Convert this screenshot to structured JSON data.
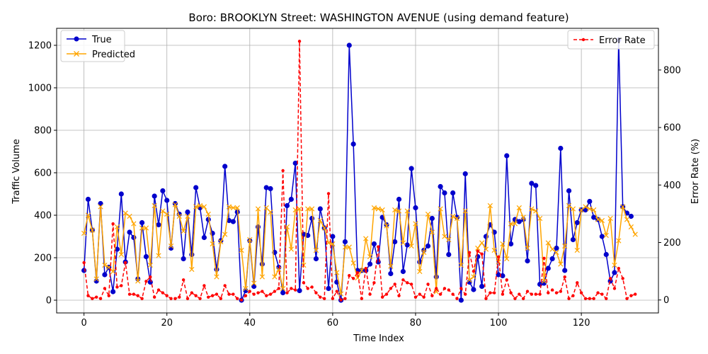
{
  "chart_data": {
    "type": "line",
    "title": "Boro: BROOKLYN Street: WASHINGTON AVENUE (using demand feature)",
    "xlabel": "Time Index",
    "ylabel": "Traffic Volume",
    "y2label": "Error Rate (%)",
    "xlim": [
      -6.6,
      138.6
    ],
    "ylim": [
      -60,
      1280
    ],
    "y2lim": [
      -45,
      945
    ],
    "xticks": [
      0,
      20,
      40,
      60,
      80,
      100,
      120
    ],
    "yticks": [
      0,
      200,
      400,
      600,
      800,
      1000,
      1200
    ],
    "y2ticks": [
      0,
      200,
      400,
      600,
      800
    ],
    "grid": true,
    "legend_left_placement": "upper-left",
    "legend_right_placement": "upper-right",
    "colors": {
      "true": "#0000cc",
      "predicted": "#ffa500",
      "error": "#ff0000",
      "grid": "#b0b0b0"
    },
    "series": [
      {
        "name": "True",
        "axis": "left",
        "marker": "circle",
        "values": [
          140,
          475,
          330,
          90,
          455,
          120,
          155,
          40,
          240,
          500,
          180,
          320,
          295,
          100,
          365,
          205,
          85,
          490,
          355,
          515,
          470,
          245,
          455,
          405,
          195,
          415,
          215,
          530,
          435,
          295,
          380,
          315,
          145,
          280,
          630,
          375,
          370,
          415,
          0,
          45,
          280,
          65,
          345,
          170,
          530,
          525,
          225,
          155,
          35,
          445,
          475,
          645,
          45,
          310,
          305,
          385,
          195,
          430,
          340,
          55,
          300,
          85,
          0,
          275,
          1200,
          735,
          140,
          140,
          140,
          170,
          265,
          180,
          390,
          355,
          125,
          275,
          475,
          135,
          260,
          620,
          435,
          180,
          235,
          255,
          385,
          110,
          535,
          505,
          215,
          505,
          390,
          0,
          595,
          85,
          50,
          205,
          65,
          300,
          355,
          320,
          120,
          115,
          680,
          265,
          380,
          370,
          380,
          185,
          550,
          540,
          75,
          80,
          150,
          195,
          245,
          715,
          140,
          515,
          285,
          365,
          425,
          425,
          465,
          390,
          380,
          300,
          215,
          90,
          130,
          1225,
          440,
          410,
          395
        ]
      },
      {
        "name": "Predicted",
        "axis": "left",
        "marker": "x",
        "values": [
          315,
          400,
          330,
          100,
          440,
          165,
          155,
          135,
          345,
          215,
          410,
          395,
          360,
          90,
          340,
          340,
          165,
          445,
          210,
          420,
          405,
          255,
          450,
          395,
          325,
          395,
          145,
          440,
          445,
          440,
          405,
          265,
          110,
          275,
          310,
          440,
          435,
          435,
          235,
          55,
          285,
          80,
          430,
          110,
          435,
          415,
          110,
          145,
          55,
          345,
          240,
          425,
          430,
          165,
          430,
          430,
          235,
          375,
          340,
          270,
          265,
          130,
          30,
          250,
          250,
          175,
          105,
          140,
          290,
          205,
          435,
          430,
          425,
          350,
          160,
          425,
          420,
          270,
          420,
          255,
          360,
          135,
          225,
          405,
          320,
          40,
          430,
          300,
          285,
          395,
          385,
          165,
          420,
          95,
          110,
          245,
          270,
          240,
          445,
          235,
          180,
          265,
          195,
          360,
          360,
          435,
          390,
          245,
          430,
          420,
          385,
          90,
          270,
          240,
          225,
          170,
          255,
          445,
          430,
          235,
          425,
          440,
          430,
          425,
          380,
          375,
          305,
          385,
          165,
          280,
          440,
          380,
          345,
          310
        ]
      },
      {
        "name": "Error Rate",
        "axis": "right",
        "marker": "dot",
        "dashed": true,
        "values": [
          130,
          15,
          5,
          10,
          5,
          40,
          15,
          265,
          45,
          50,
          130,
          20,
          20,
          15,
          5,
          65,
          80,
          10,
          35,
          25,
          15,
          5,
          5,
          10,
          70,
          5,
          25,
          15,
          5,
          50,
          10,
          15,
          20,
          5,
          50,
          20,
          20,
          5,
          0,
          15,
          30,
          20,
          25,
          30,
          15,
          20,
          30,
          40,
          450,
          25,
          40,
          35,
          900,
          60,
          40,
          45,
          25,
          10,
          5,
          370,
          5,
          30,
          0,
          5,
          85,
          75,
          95,
          5,
          110,
          20,
          60,
          185,
          10,
          20,
          40,
          55,
          15,
          70,
          60,
          55,
          10,
          20,
          10,
          55,
          15,
          40,
          20,
          40,
          35,
          20,
          5,
          40,
          20,
          165,
          100,
          170,
          160,
          5,
          25,
          25,
          150,
          20,
          70,
          25,
          5,
          20,
          5,
          30,
          20,
          20,
          20,
          145,
          25,
          35,
          25,
          30,
          80,
          5,
          15,
          60,
          25,
          5,
          5,
          5,
          25,
          20,
          5,
          75,
          40,
          110,
          75,
          5,
          15,
          20
        ]
      }
    ]
  }
}
